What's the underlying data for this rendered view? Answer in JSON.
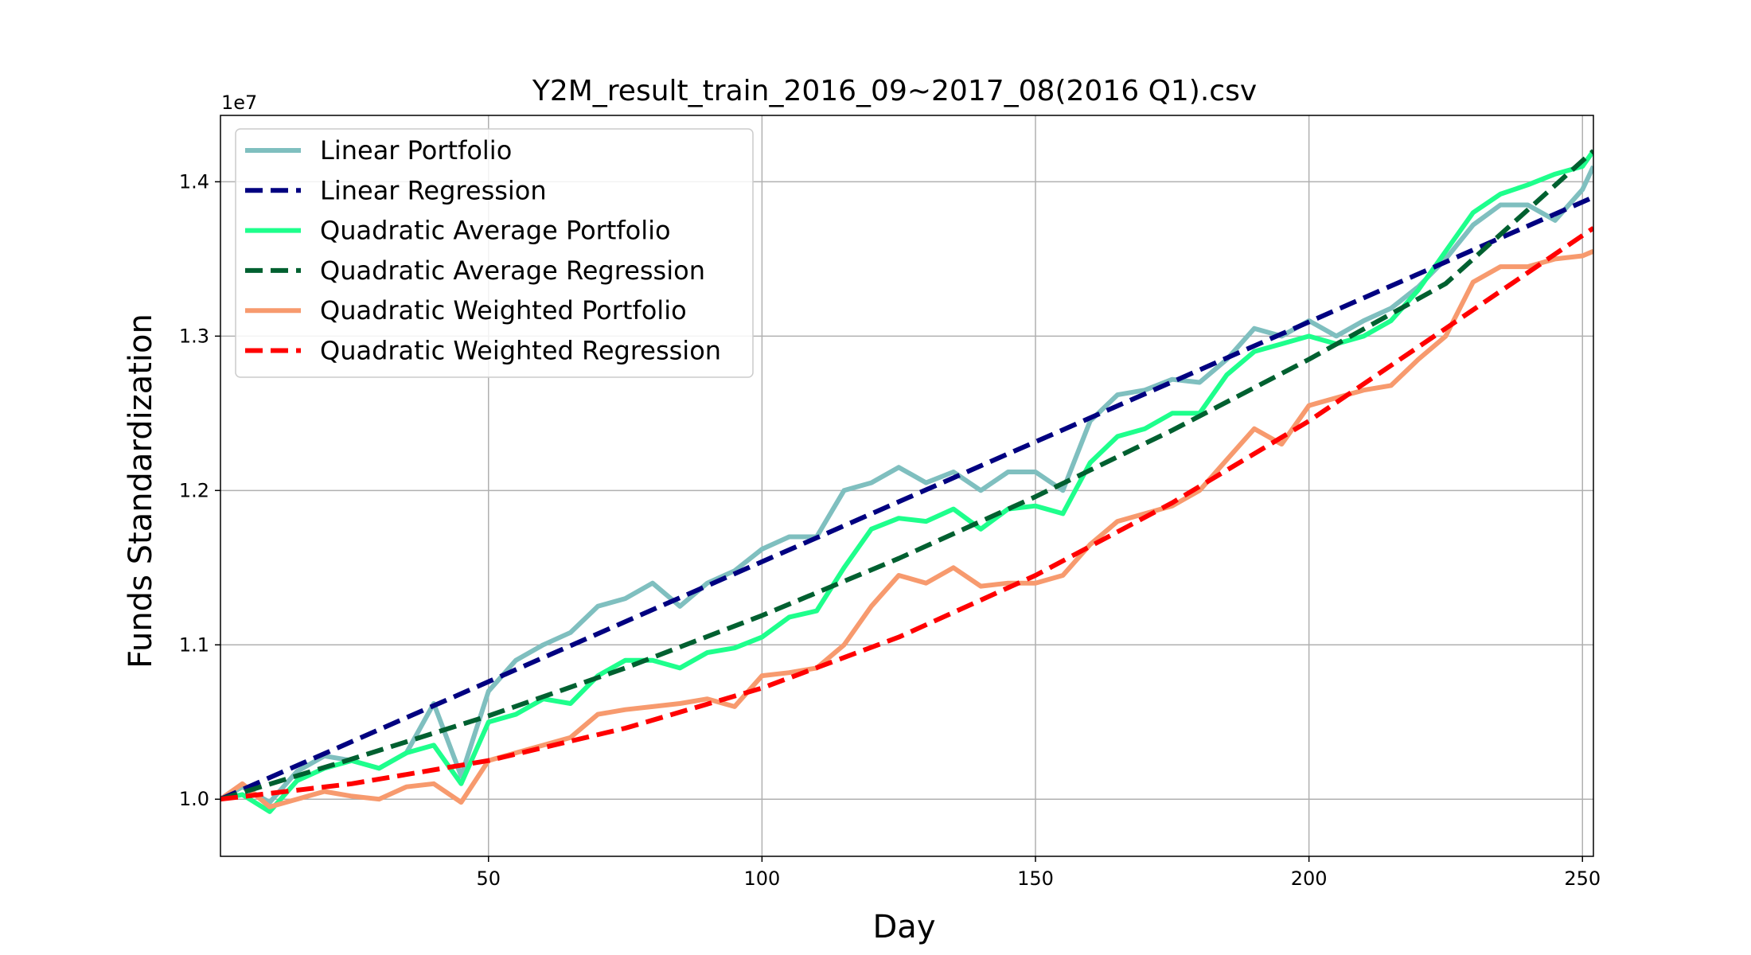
{
  "chart_data": {
    "type": "line",
    "title": "Y2M_result_train_2016_09~2017_08(2016 Q1).csv",
    "xlabel": "Day",
    "ylabel": "Funds Standardization",
    "y_offset_label": "1e7",
    "xlim": [
      1,
      252
    ],
    "ylim": [
      0.963,
      1.443
    ],
    "x_ticks": [
      50,
      100,
      150,
      200,
      250
    ],
    "y_ticks": [
      1.0,
      1.1,
      1.2,
      1.3,
      1.4
    ],
    "y_tick_labels": [
      "1.0",
      "1.1",
      "1.2",
      "1.3",
      "1.4"
    ],
    "grid": true,
    "legend_position": "upper-left",
    "colors": {
      "linear_portfolio": "#7fbfbf",
      "linear_regression": "#000080",
      "quadratic_average_portfolio": "#1eff8c",
      "quadratic_average_regression": "#006030",
      "quadratic_weighted_portfolio": "#f79a6e",
      "quadratic_weighted_regression": "#ff0000"
    },
    "series": [
      {
        "name": "Linear Portfolio",
        "style": "solid",
        "color": "#7fbfbf",
        "x": [
          1,
          5,
          10,
          15,
          20,
          25,
          30,
          35,
          40,
          45,
          50,
          55,
          60,
          65,
          70,
          75,
          80,
          85,
          90,
          95,
          100,
          105,
          110,
          115,
          120,
          125,
          130,
          135,
          140,
          145,
          150,
          155,
          160,
          165,
          170,
          175,
          180,
          185,
          190,
          195,
          200,
          205,
          210,
          215,
          220,
          225,
          230,
          235,
          240,
          245,
          250,
          252
        ],
        "y": [
          1.0,
          1.008,
          0.998,
          1.018,
          1.028,
          1.025,
          1.02,
          1.03,
          1.062,
          1.015,
          1.07,
          1.09,
          1.1,
          1.108,
          1.125,
          1.13,
          1.14,
          1.125,
          1.14,
          1.148,
          1.162,
          1.17,
          1.17,
          1.2,
          1.205,
          1.215,
          1.205,
          1.212,
          1.2,
          1.212,
          1.212,
          1.2,
          1.245,
          1.262,
          1.265,
          1.272,
          1.27,
          1.285,
          1.305,
          1.3,
          1.31,
          1.3,
          1.31,
          1.318,
          1.332,
          1.35,
          1.372,
          1.385,
          1.385,
          1.375,
          1.395,
          1.41
        ]
      },
      {
        "name": "Linear Regression",
        "style": "dashed",
        "color": "#000080",
        "x": [
          1,
          252
        ],
        "y": [
          1.0,
          1.39
        ]
      },
      {
        "name": "Quadratic Average Portfolio",
        "style": "solid",
        "color": "#1eff8c",
        "x": [
          1,
          5,
          10,
          15,
          20,
          25,
          30,
          35,
          40,
          45,
          50,
          55,
          60,
          65,
          70,
          75,
          80,
          85,
          90,
          95,
          100,
          105,
          110,
          115,
          120,
          125,
          130,
          135,
          140,
          145,
          150,
          155,
          160,
          165,
          170,
          175,
          180,
          185,
          190,
          195,
          200,
          205,
          210,
          215,
          220,
          225,
          230,
          235,
          240,
          245,
          250,
          252
        ],
        "y": [
          1.0,
          1.003,
          0.992,
          1.012,
          1.02,
          1.025,
          1.02,
          1.03,
          1.035,
          1.01,
          1.05,
          1.055,
          1.065,
          1.062,
          1.08,
          1.09,
          1.09,
          1.085,
          1.095,
          1.098,
          1.105,
          1.118,
          1.122,
          1.15,
          1.175,
          1.182,
          1.18,
          1.188,
          1.175,
          1.188,
          1.19,
          1.185,
          1.218,
          1.235,
          1.24,
          1.25,
          1.25,
          1.275,
          1.29,
          1.295,
          1.3,
          1.295,
          1.3,
          1.31,
          1.33,
          1.355,
          1.38,
          1.392,
          1.398,
          1.405,
          1.41,
          1.42
        ]
      },
      {
        "name": "Quadratic Average Regression",
        "style": "dashed",
        "color": "#006030",
        "x": [
          1,
          25,
          50,
          75,
          100,
          125,
          150,
          175,
          200,
          225,
          252
        ],
        "y": [
          1.0,
          1.026,
          1.054,
          1.085,
          1.119,
          1.156,
          1.196,
          1.239,
          1.285,
          1.334,
          1.42
        ]
      },
      {
        "name": "Quadratic Weighted Portfolio",
        "style": "solid",
        "color": "#f79a6e",
        "x": [
          1,
          5,
          10,
          15,
          20,
          25,
          30,
          35,
          40,
          45,
          50,
          55,
          60,
          65,
          70,
          75,
          80,
          85,
          90,
          95,
          100,
          105,
          110,
          115,
          120,
          125,
          130,
          135,
          140,
          145,
          150,
          155,
          160,
          165,
          170,
          175,
          180,
          185,
          190,
          195,
          200,
          205,
          210,
          215,
          220,
          225,
          230,
          235,
          240,
          245,
          250,
          252
        ],
        "y": [
          1.0,
          1.01,
          0.995,
          1.0,
          1.005,
          1.002,
          1.0,
          1.008,
          1.01,
          0.998,
          1.025,
          1.03,
          1.035,
          1.04,
          1.055,
          1.058,
          1.06,
          1.062,
          1.065,
          1.06,
          1.08,
          1.082,
          1.085,
          1.1,
          1.125,
          1.145,
          1.14,
          1.15,
          1.138,
          1.14,
          1.14,
          1.145,
          1.165,
          1.18,
          1.185,
          1.19,
          1.2,
          1.22,
          1.24,
          1.23,
          1.255,
          1.26,
          1.265,
          1.268,
          1.285,
          1.3,
          1.335,
          1.345,
          1.345,
          1.35,
          1.352,
          1.355
        ]
      },
      {
        "name": "Quadratic Weighted Regression",
        "style": "dashed",
        "color": "#ff0000",
        "x": [
          1,
          25,
          50,
          75,
          100,
          125,
          150,
          175,
          200,
          225,
          252
        ],
        "y": [
          1.0,
          1.01,
          1.025,
          1.046,
          1.072,
          1.105,
          1.145,
          1.192,
          1.245,
          1.305,
          1.37
        ]
      }
    ]
  }
}
